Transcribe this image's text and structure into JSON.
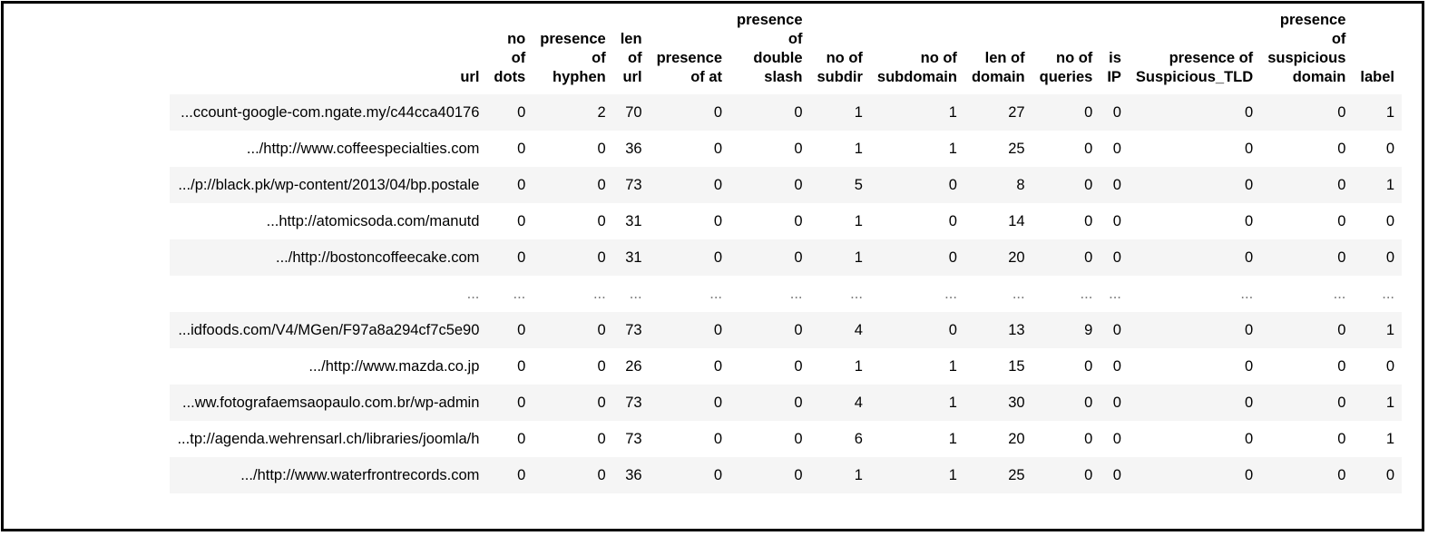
{
  "table": {
    "columns": [
      [
        "url"
      ],
      [
        "no",
        "of",
        "dots"
      ],
      [
        "presence",
        "of",
        "hyphen"
      ],
      [
        "len",
        "of",
        "url"
      ],
      [
        "presence",
        "of at"
      ],
      [
        "presence",
        "of",
        "double",
        "slash"
      ],
      [
        "no of",
        "subdir"
      ],
      [
        "no of",
        "subdomain"
      ],
      [
        "len of",
        "domain"
      ],
      [
        "no of",
        "queries"
      ],
      [
        "is",
        "IP"
      ],
      [
        "presence of",
        "Suspicious_TLD"
      ],
      [
        "presence",
        "of",
        "suspicious",
        "domain"
      ],
      [
        "label"
      ]
    ],
    "rows": [
      [
        "ccount-google-com.ngate.my/c44cca40176...",
        "0",
        "2",
        "70",
        "0",
        "0",
        "1",
        "1",
        "27",
        "0",
        "0",
        "0",
        "0",
        "1"
      ],
      [
        "http://www.coffeespecialties.com/...",
        "0",
        "0",
        "36",
        "0",
        "0",
        "1",
        "1",
        "25",
        "0",
        "0",
        "0",
        "0",
        "0"
      ],
      [
        "p://black.pk/wp-content/2013/04/bp.postale/...",
        "0",
        "0",
        "73",
        "0",
        "0",
        "5",
        "0",
        "8",
        "0",
        "0",
        "0",
        "0",
        "1"
      ],
      [
        "http://atomicsoda.com/manutd...",
        "0",
        "0",
        "31",
        "0",
        "0",
        "1",
        "0",
        "14",
        "0",
        "0",
        "0",
        "0",
        "0"
      ],
      [
        "http://bostoncoffeecake.com/...",
        "0",
        "0",
        "31",
        "0",
        "0",
        "1",
        "0",
        "20",
        "0",
        "0",
        "0",
        "0",
        "0"
      ],
      [
        "...",
        "...",
        "...",
        "...",
        "...",
        "...",
        "...",
        "...",
        "...",
        "...",
        "...",
        "...",
        "...",
        "..."
      ],
      [
        "idfoods.com/V4/MGen/F97a8a294cf7c5e90...",
        "0",
        "0",
        "73",
        "0",
        "0",
        "4",
        "0",
        "13",
        "9",
        "0",
        "0",
        "0",
        "1"
      ],
      [
        "http://www.mazda.co.jp/...",
        "0",
        "0",
        "26",
        "0",
        "0",
        "1",
        "1",
        "15",
        "0",
        "0",
        "0",
        "0",
        "0"
      ],
      [
        "ww.fotografaemsaopaulo.com.br/wp-admin...",
        "0",
        "0",
        "73",
        "0",
        "0",
        "4",
        "1",
        "30",
        "0",
        "0",
        "0",
        "0",
        "1"
      ],
      [
        "tp://agenda.wehrensarl.ch/libraries/joomla/h...",
        "0",
        "0",
        "73",
        "0",
        "0",
        "6",
        "1",
        "20",
        "0",
        "0",
        "0",
        "0",
        "1"
      ],
      [
        "http://www.waterfrontrecords.com/...",
        "0",
        "0",
        "36",
        "0",
        "0",
        "1",
        "1",
        "25",
        "0",
        "0",
        "0",
        "0",
        "0"
      ]
    ]
  }
}
